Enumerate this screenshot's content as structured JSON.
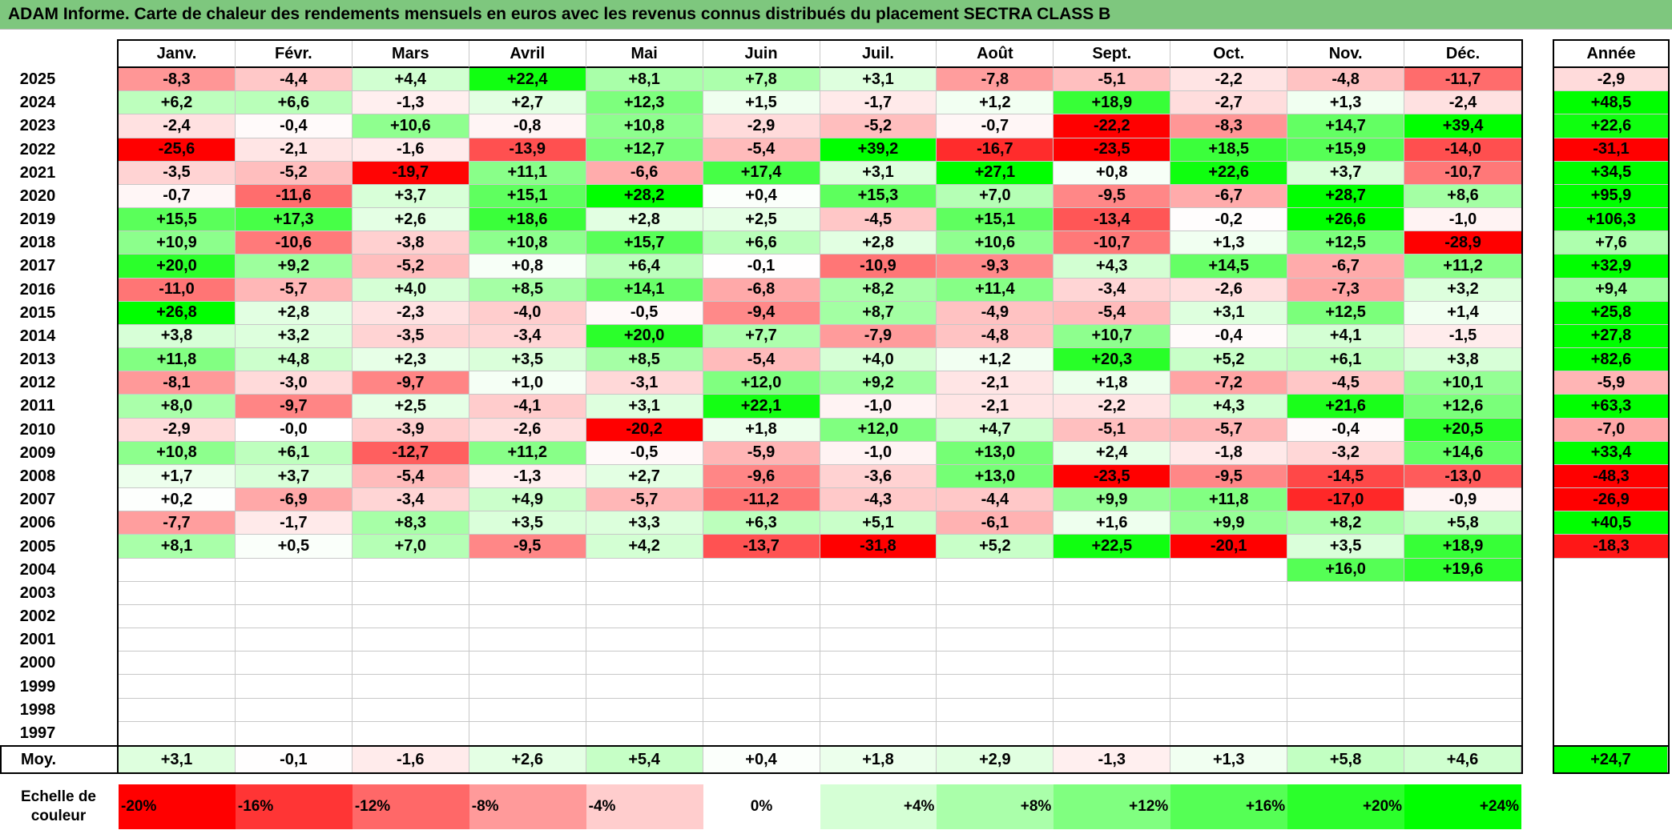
{
  "theme": {
    "title_bar_color": "#7ec77e"
  },
  "chart_data": {
    "type": "heatmap",
    "title": "ADAM Informe. Carte de chaleur des rendements mensuels en euros avec les revenus connus distribués du placement SECTRA CLASS B",
    "columns": [
      "Janv.",
      "Févr.",
      "Mars",
      "Avril",
      "Mai",
      "Juin",
      "Juil.",
      "Août",
      "Sept.",
      "Oct.",
      "Nov.",
      "Déc."
    ],
    "annual_label": "Année",
    "rows": [
      {
        "year": "2025",
        "values": [
          "-8,3",
          "-4,4",
          "+4,4",
          "+22,4",
          "+8,1",
          "+7,8",
          "+3,1",
          "-7,8",
          "-5,1",
          "-2,2",
          "-4,8",
          "-11,7"
        ],
        "annual": "-2,9"
      },
      {
        "year": "2024",
        "values": [
          "+6,2",
          "+6,6",
          "-1,3",
          "+2,7",
          "+12,3",
          "+1,5",
          "-1,7",
          "+1,2",
          "+18,9",
          "-2,7",
          "+1,3",
          "-2,4"
        ],
        "annual": "+48,5"
      },
      {
        "year": "2023",
        "values": [
          "-2,4",
          "-0,4",
          "+10,6",
          "-0,8",
          "+10,8",
          "-2,9",
          "-5,2",
          "-0,7",
          "-22,2",
          "-8,3",
          "+14,7",
          "+39,4"
        ],
        "annual": "+22,6"
      },
      {
        "year": "2022",
        "values": [
          "-25,6",
          "-2,1",
          "-1,6",
          "-13,9",
          "+12,7",
          "-5,4",
          "+39,2",
          "-16,7",
          "-23,5",
          "+18,5",
          "+15,9",
          "-14,0"
        ],
        "annual": "-31,1"
      },
      {
        "year": "2021",
        "values": [
          "-3,5",
          "-5,2",
          "-19,7",
          "+11,1",
          "-6,6",
          "+17,4",
          "+3,1",
          "+27,1",
          "+0,8",
          "+22,6",
          "+3,7",
          "-10,7"
        ],
        "annual": "+34,5"
      },
      {
        "year": "2020",
        "values": [
          "-0,7",
          "-11,6",
          "+3,7",
          "+15,1",
          "+28,2",
          "+0,4",
          "+15,3",
          "+7,0",
          "-9,5",
          "-6,7",
          "+28,7",
          "+8,6"
        ],
        "annual": "+95,9"
      },
      {
        "year": "2019",
        "values": [
          "+15,5",
          "+17,3",
          "+2,6",
          "+18,6",
          "+2,8",
          "+2,5",
          "-4,5",
          "+15,1",
          "-13,4",
          "-0,2",
          "+26,6",
          "-1,0"
        ],
        "annual": "+106,3"
      },
      {
        "year": "2018",
        "values": [
          "+10,9",
          "-10,6",
          "-3,8",
          "+10,8",
          "+15,7",
          "+6,6",
          "+2,8",
          "+10,6",
          "-10,7",
          "+1,3",
          "+12,5",
          "-28,9"
        ],
        "annual": "+7,6"
      },
      {
        "year": "2017",
        "values": [
          "+20,0",
          "+9,2",
          "-5,2",
          "+0,8",
          "+6,4",
          "-0,1",
          "-10,9",
          "-9,3",
          "+4,3",
          "+14,5",
          "-6,7",
          "+11,2"
        ],
        "annual": "+32,9"
      },
      {
        "year": "2016",
        "values": [
          "-11,0",
          "-5,7",
          "+4,0",
          "+8,5",
          "+14,1",
          "-6,8",
          "+8,2",
          "+11,4",
          "-3,4",
          "-2,6",
          "-7,3",
          "+3,2"
        ],
        "annual": "+9,4"
      },
      {
        "year": "2015",
        "values": [
          "+26,8",
          "+2,8",
          "-2,3",
          "-4,0",
          "-0,5",
          "-9,4",
          "+8,7",
          "-4,9",
          "-5,4",
          "+3,1",
          "+12,5",
          "+1,4"
        ],
        "annual": "+25,8"
      },
      {
        "year": "2014",
        "values": [
          "+3,8",
          "+3,2",
          "-3,5",
          "-3,4",
          "+20,0",
          "+7,7",
          "-7,9",
          "-4,8",
          "+10,7",
          "-0,4",
          "+4,1",
          "-1,5"
        ],
        "annual": "+27,8"
      },
      {
        "year": "2013",
        "values": [
          "+11,8",
          "+4,8",
          "+2,3",
          "+3,5",
          "+8,5",
          "-5,4",
          "+4,0",
          "+1,2",
          "+20,3",
          "+5,2",
          "+6,1",
          "+3,8"
        ],
        "annual": "+82,6"
      },
      {
        "year": "2012",
        "values": [
          "-8,1",
          "-3,0",
          "-9,7",
          "+1,0",
          "-3,1",
          "+12,0",
          "+9,2",
          "-2,1",
          "+1,8",
          "-7,2",
          "-4,5",
          "+10,1"
        ],
        "annual": "-5,9"
      },
      {
        "year": "2011",
        "values": [
          "+8,0",
          "-9,7",
          "+2,5",
          "-4,1",
          "+3,1",
          "+22,1",
          "-1,0",
          "-2,1",
          "-2,2",
          "+4,3",
          "+21,6",
          "+12,6"
        ],
        "annual": "+63,3"
      },
      {
        "year": "2010",
        "values": [
          "-2,9",
          "-0,0",
          "-3,9",
          "-2,6",
          "-20,2",
          "+1,8",
          "+12,0",
          "+4,7",
          "-5,1",
          "-5,7",
          "-0,4",
          "+20,5"
        ],
        "annual": "-7,0"
      },
      {
        "year": "2009",
        "values": [
          "+10,8",
          "+6,1",
          "-12,7",
          "+11,2",
          "-0,5",
          "-5,9",
          "-1,0",
          "+13,0",
          "+2,4",
          "-1,8",
          "-3,2",
          "+14,6"
        ],
        "annual": "+33,4"
      },
      {
        "year": "2008",
        "values": [
          "+1,7",
          "+3,7",
          "-5,4",
          "-1,3",
          "+2,7",
          "-9,6",
          "-3,6",
          "+13,0",
          "-23,5",
          "-9,5",
          "-14,5",
          "-13,0"
        ],
        "annual": "-48,3"
      },
      {
        "year": "2007",
        "values": [
          "+0,2",
          "-6,9",
          "-3,4",
          "+4,9",
          "-5,7",
          "-11,2",
          "-4,3",
          "-4,4",
          "+9,9",
          "+11,8",
          "-17,0",
          "-0,9"
        ],
        "annual": "-26,9"
      },
      {
        "year": "2006",
        "values": [
          "-7,7",
          "-1,7",
          "+8,3",
          "+3,5",
          "+3,3",
          "+6,3",
          "+5,1",
          "-6,1",
          "+1,6",
          "+9,9",
          "+8,2",
          "+5,8"
        ],
        "annual": "+40,5"
      },
      {
        "year": "2005",
        "values": [
          "+8,1",
          "+0,5",
          "+7,0",
          "-9,5",
          "+4,2",
          "-13,7",
          "-31,8",
          "+5,2",
          "+22,5",
          "-20,1",
          "+3,5",
          "+18,9"
        ],
        "annual": "-18,3"
      },
      {
        "year": "2004",
        "values": [
          "",
          "",
          "",
          "",
          "",
          "",
          "",
          "",
          "",
          "",
          "+16,0",
          "+19,6"
        ],
        "annual": ""
      },
      {
        "year": "2003",
        "values": [
          "",
          "",
          "",
          "",
          "",
          "",
          "",
          "",
          "",
          "",
          "",
          ""
        ],
        "annual": ""
      },
      {
        "year": "2002",
        "values": [
          "",
          "",
          "",
          "",
          "",
          "",
          "",
          "",
          "",
          "",
          "",
          ""
        ],
        "annual": ""
      },
      {
        "year": "2001",
        "values": [
          "",
          "",
          "",
          "",
          "",
          "",
          "",
          "",
          "",
          "",
          "",
          ""
        ],
        "annual": ""
      },
      {
        "year": "2000",
        "values": [
          "",
          "",
          "",
          "",
          "",
          "",
          "",
          "",
          "",
          "",
          "",
          ""
        ],
        "annual": ""
      },
      {
        "year": "1999",
        "values": [
          "",
          "",
          "",
          "",
          "",
          "",
          "",
          "",
          "",
          "",
          "",
          ""
        ],
        "annual": ""
      },
      {
        "year": "1998",
        "values": [
          "",
          "",
          "",
          "",
          "",
          "",
          "",
          "",
          "",
          "",
          "",
          ""
        ],
        "annual": ""
      },
      {
        "year": "1997",
        "values": [
          "",
          "",
          "",
          "",
          "",
          "",
          "",
          "",
          "",
          "",
          "",
          ""
        ],
        "annual": ""
      }
    ],
    "average": {
      "label": "Moy.",
      "values": [
        "+3,1",
        "-0,1",
        "-1,6",
        "+2,6",
        "+5,4",
        "+0,4",
        "+1,8",
        "+2,9",
        "-1,3",
        "+1,3",
        "+5,8",
        "+4,6"
      ],
      "annual": "+24,7"
    },
    "color_scale": {
      "label": "Echelle de couleur",
      "stops": [
        {
          "label": "-20%",
          "color": "#ff0000"
        },
        {
          "label": "-16%",
          "color": "#ff3535"
        },
        {
          "label": "-12%",
          "color": "#ff6868"
        },
        {
          "label": "-8%",
          "color": "#ff9a9a"
        },
        {
          "label": "-4%",
          "color": "#ffcdcd"
        },
        {
          "label": "0%",
          "color": "#ffffff"
        },
        {
          "label": "+4%",
          "color": "#d5ffd5"
        },
        {
          "label": "+8%",
          "color": "#aaffaa"
        },
        {
          "label": "+12%",
          "color": "#80ff80"
        },
        {
          "label": "+16%",
          "color": "#55ff55"
        },
        {
          "label": "+20%",
          "color": "#2bff2b"
        },
        {
          "label": "+24%",
          "color": "#00ff00"
        }
      ]
    }
  }
}
